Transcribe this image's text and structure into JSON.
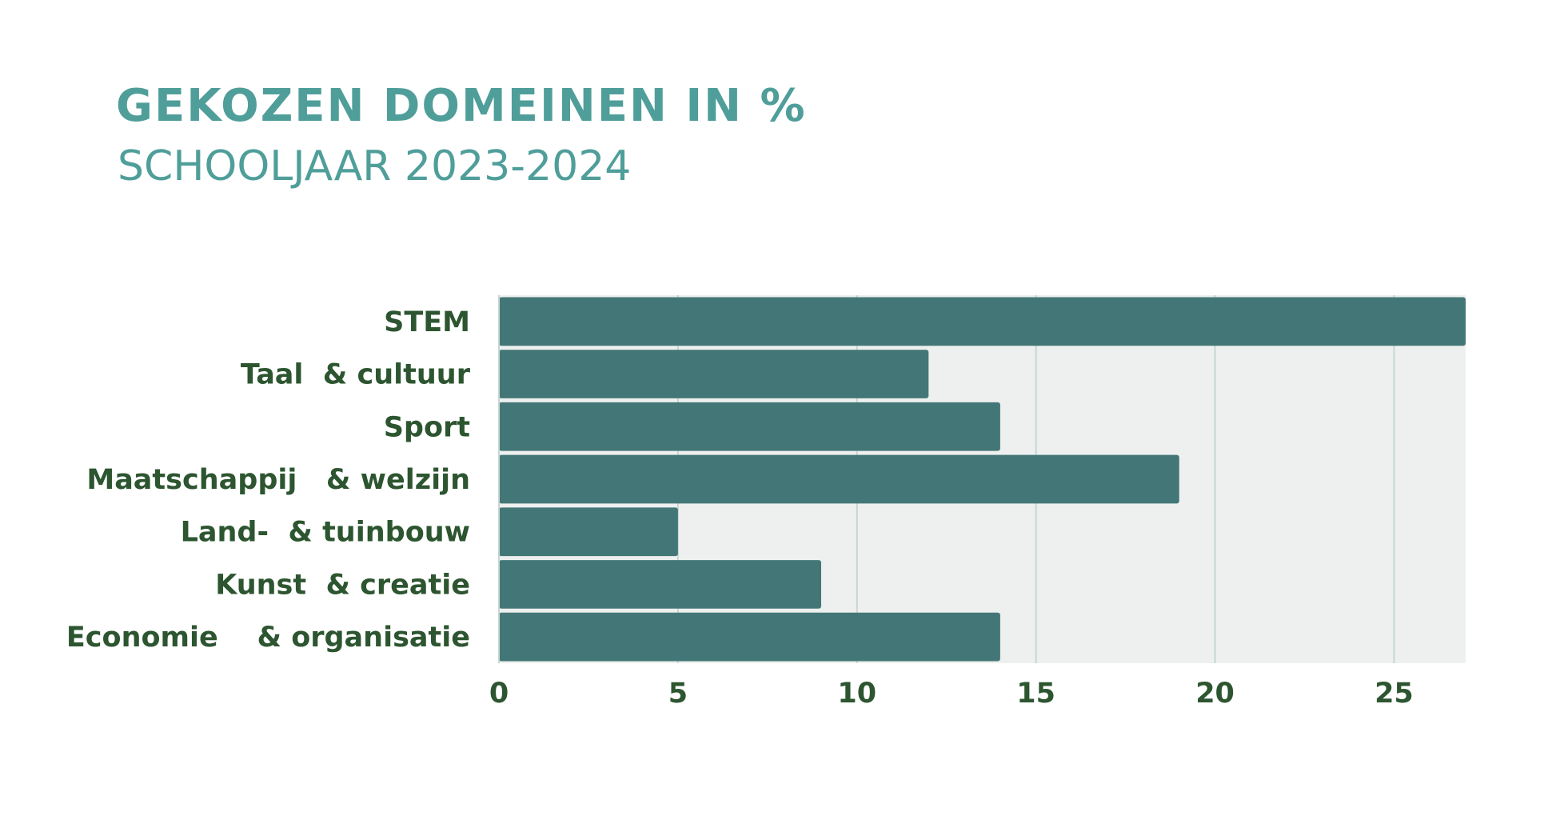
{
  "header": {
    "title": "GEKOZEN DOMEINEN IN %",
    "subtitle": "SCHOOLJAAR 2023-2024"
  },
  "colors": {
    "title": "#4f9e9a",
    "bar": "#437777",
    "plot_background": "#eef0ef",
    "gridline": "#c5d6d2",
    "label": "#2c5530"
  },
  "chart_data": {
    "type": "bar",
    "orientation": "horizontal",
    "title": "GEKOZEN DOMEINEN IN %",
    "subtitle": "SCHOOLJAAR 2023-2024",
    "categories": [
      "STEM",
      "Taal  & cultuur",
      "Sport",
      "Maatschappij   & welzijn",
      "Land-  & tuinbouw",
      "Kunst  & creatie",
      "Economie    & organisatie"
    ],
    "values": [
      27,
      12,
      14,
      19,
      5,
      9,
      14
    ],
    "xlim": [
      0,
      27
    ],
    "xticks": [
      0,
      5,
      10,
      15,
      20,
      25
    ],
    "xlabel": "",
    "ylabel": "",
    "grid": true,
    "legend": "none"
  }
}
